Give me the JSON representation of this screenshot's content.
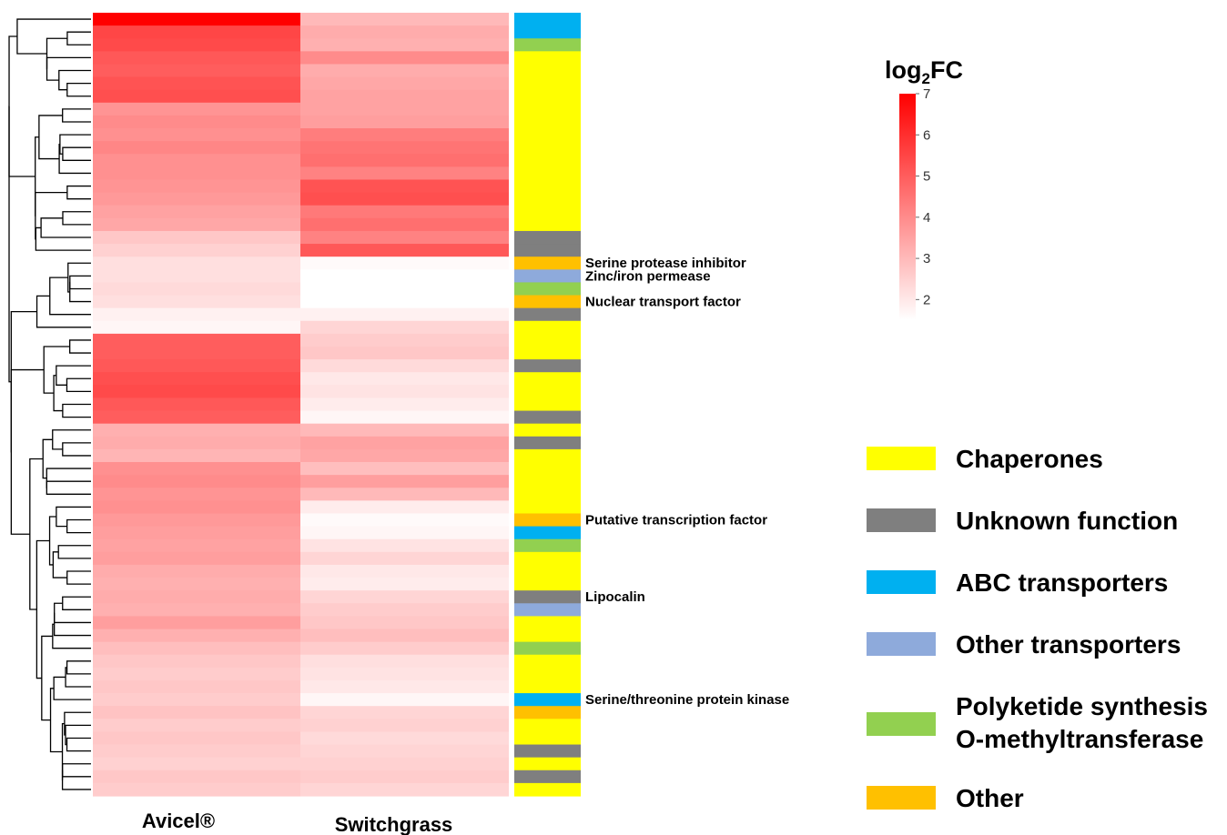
{
  "chart_data": {
    "type": "heatmap",
    "columns": [
      "Avicel®",
      "Switchgrass"
    ],
    "colorbar": {
      "title_main": "log",
      "title_sub": "2",
      "title_tail": "FC",
      "min": 1.5,
      "max": 7,
      "ticks": [
        7,
        6,
        5,
        4,
        3,
        2
      ],
      "low_color": "#ffffff",
      "high_color": "#ff0000"
    },
    "categories": {
      "Chaperones": "#ffff00",
      "Unknown function": "#7f7f7f",
      "ABC transporters": "#00b0f0",
      "Other transporters": "#8eaadb",
      "Polyketide synthesis O-methyltransferase": "#92d050",
      "Other": "#ffc000"
    },
    "legend": [
      {
        "key": "Chaperones",
        "lines": [
          "Chaperones"
        ]
      },
      {
        "key": "Unknown function",
        "lines": [
          "Unknown function"
        ]
      },
      {
        "key": "ABC transporters",
        "lines": [
          "ABC transporters"
        ]
      },
      {
        "key": "Other transporters",
        "lines": [
          "Other transporters"
        ]
      },
      {
        "key": "Polyketide synthesis O-methyltransferase",
        "lines": [
          "Polyketide synthesis",
          "O-methyltransferase"
        ]
      },
      {
        "key": "Other",
        "lines": [
          "Other"
        ]
      }
    ],
    "rows": [
      {
        "avicel": 7.0,
        "switchgrass": 3.0,
        "cat": "ABC transporters"
      },
      {
        "avicel": 5.5,
        "switchgrass": 3.3,
        "cat": "ABC transporters"
      },
      {
        "avicel": 5.4,
        "switchgrass": 3.2,
        "cat": "Polyketide synthesis O-methyltransferase"
      },
      {
        "avicel": 5.1,
        "switchgrass": 4.0,
        "cat": "Chaperones"
      },
      {
        "avicel": 5.0,
        "switchgrass": 3.3,
        "cat": "Chaperones"
      },
      {
        "avicel": 5.2,
        "switchgrass": 3.4,
        "cat": "Chaperones"
      },
      {
        "avicel": 5.3,
        "switchgrass": 3.5,
        "cat": "Chaperones"
      },
      {
        "avicel": 3.8,
        "switchgrass": 3.5,
        "cat": "Chaperones"
      },
      {
        "avicel": 4.0,
        "switchgrass": 3.6,
        "cat": "Chaperones"
      },
      {
        "avicel": 3.9,
        "switchgrass": 4.3,
        "cat": "Chaperones"
      },
      {
        "avicel": 4.1,
        "switchgrass": 4.5,
        "cat": "Chaperones"
      },
      {
        "avicel": 3.9,
        "switchgrass": 4.6,
        "cat": "Chaperones"
      },
      {
        "avicel": 3.9,
        "switchgrass": 4.2,
        "cat": "Chaperones"
      },
      {
        "avicel": 3.8,
        "switchgrass": 5.2,
        "cat": "Chaperones"
      },
      {
        "avicel": 3.7,
        "switchgrass": 5.3,
        "cat": "Chaperones"
      },
      {
        "avicel": 3.5,
        "switchgrass": 4.4,
        "cat": "Chaperones"
      },
      {
        "avicel": 3.4,
        "switchgrass": 4.6,
        "cat": "Chaperones"
      },
      {
        "avicel": 2.7,
        "switchgrass": 4.2,
        "cat": "Unknown function"
      },
      {
        "avicel": 2.5,
        "switchgrass": 5.1,
        "cat": "Unknown function"
      },
      {
        "avicel": 2.2,
        "switchgrass": 1.6,
        "cat": "Other"
      },
      {
        "avicel": 2.2,
        "switchgrass": 1.5,
        "cat": "Other transporters"
      },
      {
        "avicel": 2.3,
        "switchgrass": 1.5,
        "cat": "Polyketide synthesis O-methyltransferase"
      },
      {
        "avicel": 2.2,
        "switchgrass": 1.5,
        "cat": "Other"
      },
      {
        "avicel": 1.8,
        "switchgrass": 1.8,
        "cat": "Unknown function"
      },
      {
        "avicel": 1.7,
        "switchgrass": 2.4,
        "cat": "Chaperones"
      },
      {
        "avicel": 5.0,
        "switchgrass": 2.6,
        "cat": "Chaperones"
      },
      {
        "avicel": 5.0,
        "switchgrass": 2.7,
        "cat": "Chaperones"
      },
      {
        "avicel": 5.1,
        "switchgrass": 2.3,
        "cat": "Unknown function"
      },
      {
        "avicel": 5.3,
        "switchgrass": 2.0,
        "cat": "Chaperones"
      },
      {
        "avicel": 5.4,
        "switchgrass": 2.1,
        "cat": "Chaperones"
      },
      {
        "avicel": 5.1,
        "switchgrass": 1.9,
        "cat": "Chaperones"
      },
      {
        "avicel": 5.0,
        "switchgrass": 1.7,
        "cat": "Unknown function"
      },
      {
        "avicel": 3.2,
        "switchgrass": 3.0,
        "cat": "Chaperones"
      },
      {
        "avicel": 3.3,
        "switchgrass": 3.5,
        "cat": "Unknown function"
      },
      {
        "avicel": 3.1,
        "switchgrass": 3.4,
        "cat": "Chaperones"
      },
      {
        "avicel": 3.9,
        "switchgrass": 2.9,
        "cat": "Chaperones"
      },
      {
        "avicel": 4.0,
        "switchgrass": 3.6,
        "cat": "Chaperones"
      },
      {
        "avicel": 3.8,
        "switchgrass": 3.0,
        "cat": "Chaperones"
      },
      {
        "avicel": 3.9,
        "switchgrass": 1.9,
        "cat": "Chaperones"
      },
      {
        "avicel": 3.7,
        "switchgrass": 1.6,
        "cat": "Other"
      },
      {
        "avicel": 3.6,
        "switchgrass": 1.7,
        "cat": "ABC transporters"
      },
      {
        "avicel": 3.5,
        "switchgrass": 2.1,
        "cat": "Polyketide synthesis O-methyltransferase"
      },
      {
        "avicel": 3.6,
        "switchgrass": 2.4,
        "cat": "Chaperones"
      },
      {
        "avicel": 3.3,
        "switchgrass": 2.0,
        "cat": "Chaperones"
      },
      {
        "avicel": 3.2,
        "switchgrass": 1.9,
        "cat": "Chaperones"
      },
      {
        "avicel": 3.3,
        "switchgrass": 2.4,
        "cat": "Unknown function"
      },
      {
        "avicel": 3.2,
        "switchgrass": 2.6,
        "cat": "Other transporters"
      },
      {
        "avicel": 3.6,
        "switchgrass": 2.7,
        "cat": "Chaperones"
      },
      {
        "avicel": 3.2,
        "switchgrass": 2.9,
        "cat": "Chaperones"
      },
      {
        "avicel": 2.9,
        "switchgrass": 2.6,
        "cat": "Polyketide synthesis O-methyltransferase"
      },
      {
        "avicel": 2.7,
        "switchgrass": 2.2,
        "cat": "Chaperones"
      },
      {
        "avicel": 2.6,
        "switchgrass": 2.1,
        "cat": "Chaperones"
      },
      {
        "avicel": 2.7,
        "switchgrass": 2.0,
        "cat": "Chaperones"
      },
      {
        "avicel": 2.6,
        "switchgrass": 1.7,
        "cat": "ABC transporters"
      },
      {
        "avicel": 2.8,
        "switchgrass": 2.4,
        "cat": "Other"
      },
      {
        "avicel": 2.6,
        "switchgrass": 2.5,
        "cat": "Chaperones"
      },
      {
        "avicel": 2.7,
        "switchgrass": 2.3,
        "cat": "Chaperones"
      },
      {
        "avicel": 2.6,
        "switchgrass": 2.4,
        "cat": "Unknown function"
      },
      {
        "avicel": 2.5,
        "switchgrass": 2.5,
        "cat": "Chaperones"
      },
      {
        "avicel": 2.7,
        "switchgrass": 2.6,
        "cat": "Unknown function"
      },
      {
        "avicel": 2.6,
        "switchgrass": 2.4,
        "cat": "Chaperones"
      }
    ],
    "annotations": [
      {
        "row": 19,
        "text": "Serine protease inhibitor"
      },
      {
        "row": 20,
        "text": "Zinc/iron permease"
      },
      {
        "row": 22,
        "text": "Nuclear transport factor"
      },
      {
        "row": 39,
        "text": "Putative transcription factor"
      },
      {
        "row": 45,
        "text": "Lipocalin"
      },
      {
        "row": 53,
        "text": "Serine/threonine protein kinase"
      }
    ]
  }
}
